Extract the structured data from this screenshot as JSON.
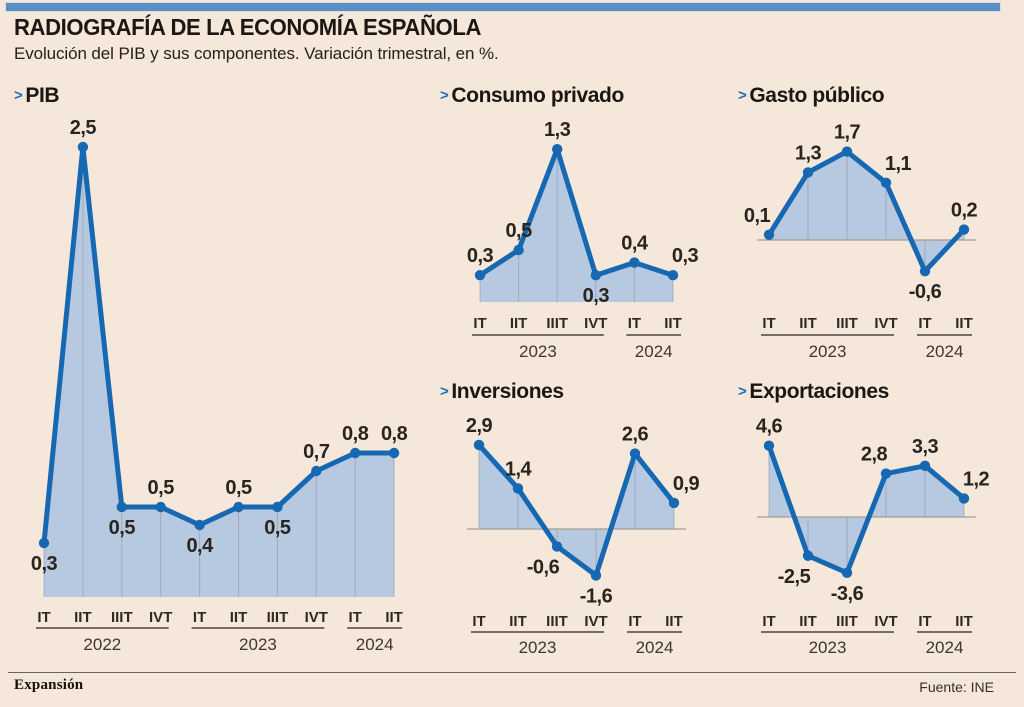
{
  "meta": {
    "title": "RADIOGRAFÍA DE LA ECONOMÍA ESPAÑOLA",
    "subtitle": "Evolución del PIB y sus componentes. Variación trimestral, en %.",
    "brand": "Expansión",
    "source": "Fuente: INE",
    "chevron": ">"
  },
  "colors": {
    "background": "#f5e7d9",
    "accent_bar": "#5b8fc2",
    "line": "#1568b1",
    "fill": "#b6c9e0",
    "grid": "#8b93a0",
    "zero_axis": "#a39e96",
    "underline": "#4c463d",
    "text": "#29241e"
  },
  "chart_data": [
    {
      "id": "pib",
      "type": "area",
      "title": "PIB",
      "unit": "%",
      "categories": [
        "IT",
        "IIT",
        "IIIT",
        "IVT",
        "IT",
        "IIT",
        "IIIT",
        "IVT",
        "IT",
        "IIT"
      ],
      "year_groups": [
        {
          "label": "2022",
          "from": 0,
          "to": 3
        },
        {
          "label": "2023",
          "from": 4,
          "to": 7
        },
        {
          "label": "2024",
          "from": 8,
          "to": 9
        }
      ],
      "values": [
        0.3,
        2.5,
        0.5,
        0.5,
        0.4,
        0.5,
        0.5,
        0.7,
        0.8,
        0.8
      ],
      "labels": [
        "0,3",
        "2,5",
        "0,5",
        "0,5",
        "0,4",
        "0,5",
        "0,5",
        "0,7",
        "0,8",
        "0,8"
      ],
      "label_pos": [
        "b",
        "a",
        "b",
        "a",
        "b",
        "a",
        "b",
        "a",
        "a",
        "a"
      ],
      "ylim": [
        0,
        2.8
      ],
      "grid": "vertical-at-points",
      "legend": "none"
    },
    {
      "id": "consumo",
      "type": "area",
      "title": "Consumo privado",
      "unit": "%",
      "categories": [
        "IT",
        "IIT",
        "IIIT",
        "IVT",
        "IT",
        "IIT"
      ],
      "year_groups": [
        {
          "label": "2023",
          "from": 0,
          "to": 3
        },
        {
          "label": "2024",
          "from": 4,
          "to": 5
        }
      ],
      "values": [
        0.3,
        0.5,
        1.3,
        0.3,
        0.4,
        0.3
      ],
      "labels": [
        "0,3",
        "0,5",
        "1,3",
        "0,3",
        "0,4",
        "0,3"
      ],
      "label_pos": [
        "a",
        "a",
        "a",
        "b",
        "a",
        "ar"
      ],
      "ylim": [
        0,
        1.5
      ],
      "grid": "vertical-at-points",
      "legend": "none"
    },
    {
      "id": "gasto",
      "type": "area",
      "title": "Gasto público",
      "unit": "%",
      "categories": [
        "IT",
        "IIT",
        "IIIT",
        "IVT",
        "IT",
        "IIT"
      ],
      "year_groups": [
        {
          "label": "2023",
          "from": 0,
          "to": 3
        },
        {
          "label": "2024",
          "from": 4,
          "to": 5
        }
      ],
      "values": [
        0.1,
        1.3,
        1.7,
        1.1,
        -0.6,
        0.2
      ],
      "labels": [
        "0,1",
        "1,3",
        "1,7",
        "1,1",
        "-0,6",
        "0,2"
      ],
      "label_pos": [
        "al",
        "a",
        "a",
        "ar",
        "b",
        "a"
      ],
      "ylim": [
        -1,
        2
      ],
      "grid": "vertical-at-points",
      "legend": "none"
    },
    {
      "id": "inversiones",
      "type": "area",
      "title": "Inversiones",
      "unit": "%",
      "categories": [
        "IT",
        "IIT",
        "IIIT",
        "IVT",
        "IT",
        "IIT"
      ],
      "year_groups": [
        {
          "label": "2023",
          "from": 0,
          "to": 3
        },
        {
          "label": "2024",
          "from": 4,
          "to": 5
        }
      ],
      "values": [
        2.9,
        1.4,
        -0.6,
        -1.6,
        2.6,
        0.9
      ],
      "labels": [
        "2,9",
        "1,4",
        "-0,6",
        "-1,6",
        "2,6",
        "0,9"
      ],
      "label_pos": [
        "a",
        "a",
        "bl",
        "b",
        "a",
        "ar"
      ],
      "ylim": [
        -2,
        3.2
      ],
      "grid": "vertical-at-points",
      "legend": "none"
    },
    {
      "id": "exportaciones",
      "type": "area",
      "title": "Exportaciones",
      "unit": "%",
      "categories": [
        "IT",
        "IIT",
        "IIIT",
        "IVT",
        "IT",
        "IIT"
      ],
      "year_groups": [
        {
          "label": "2023",
          "from": 0,
          "to": 3
        },
        {
          "label": "2024",
          "from": 4,
          "to": 5
        }
      ],
      "values": [
        4.6,
        -2.5,
        -3.6,
        2.8,
        3.3,
        1.2
      ],
      "labels": [
        "4,6",
        "-2,5",
        "-3,6",
        "2,8",
        "3,3",
        "1,2"
      ],
      "label_pos": [
        "a",
        "bl",
        "b",
        "al",
        "a",
        "ar"
      ],
      "ylim": [
        -4.2,
        5
      ],
      "grid": "vertical-at-points",
      "legend": "none"
    }
  ]
}
